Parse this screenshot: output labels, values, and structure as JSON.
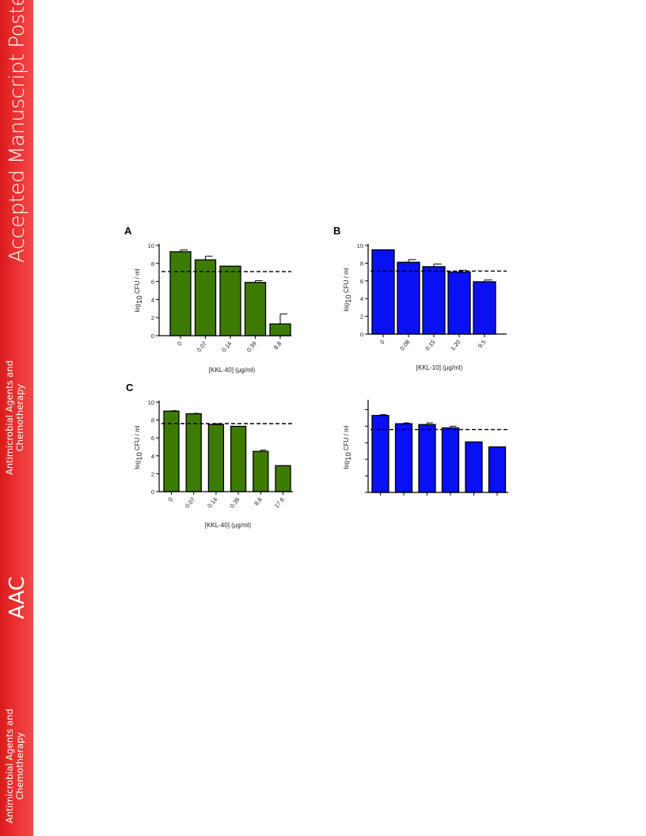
{
  "sidebar": {
    "title": "Accepted Manuscript Posted Online",
    "journal_line1": "Antimicrobial Agents and",
    "journal_line2": "Chemotherapy",
    "abbrev": "AAC",
    "journal_line1_b": "Antimicrobial Agents and",
    "journal_line2_b": "Chemotherapy"
  },
  "colors": {
    "green": "#3d7b00",
    "blue": "#0a10f4",
    "sidebar_red": "#e62828"
  },
  "chart_data": [
    {
      "panel": "A",
      "type": "bar",
      "color": "#3d7b00",
      "categories": [
        "0",
        "0.07",
        "0.14",
        "0.39",
        "8.8"
      ],
      "values": [
        9.3,
        8.4,
        7.7,
        5.9,
        1.3
      ],
      "errors": [
        0.2,
        0.4,
        0.0,
        0.2,
        1.1
      ],
      "ylim": [
        0,
        10
      ],
      "yticks": [
        "0",
        "2",
        "4",
        "6",
        "8",
        "10"
      ],
      "ylabel_pre": "log",
      "ylabel_sub": "10",
      "ylabel_post": " CFU / ml",
      "xlabel": "[KKL-40] (μg/ml)",
      "threshold": 7.1,
      "show_axes_text": true
    },
    {
      "panel": "B",
      "type": "bar",
      "color": "#0a10f4",
      "categories": [
        "0",
        "0.08",
        "0.15",
        "1.20",
        "9.5"
      ],
      "values": [
        9.5,
        8.1,
        7.6,
        7.0,
        5.9
      ],
      "errors": [
        0.0,
        0.3,
        0.3,
        0.2,
        0.2
      ],
      "ylim": [
        0,
        10
      ],
      "yticks": [
        "0",
        "2",
        "4",
        "6",
        "8",
        "10"
      ],
      "ylabel_pre": "log",
      "ylabel_sub": "10",
      "ylabel_post": " CFU / ml",
      "xlabel": "[KKL-10] (μg/ml)",
      "threshold": 7.1,
      "show_axes_text": true
    },
    {
      "panel": "C",
      "type": "bar",
      "color": "#3d7b00",
      "categories": [
        "0",
        "0.07",
        "0.14",
        "0.39",
        "8.8",
        "17.6"
      ],
      "values": [
        9.0,
        8.7,
        7.5,
        7.3,
        4.5,
        2.9
      ],
      "errors": [
        0.05,
        0.05,
        0.1,
        0.0,
        0.15,
        0.0
      ],
      "ylim": [
        0,
        10
      ],
      "yticks": [
        "0",
        "2",
        "4",
        "6",
        "8",
        "10"
      ],
      "ylabel_pre": "log",
      "ylabel_sub": "10",
      "ylabel_post": " CFU / ml",
      "xlabel": "[KKL-40] (μg/ml)",
      "threshold": 7.6,
      "show_axes_text": true
    },
    {
      "panel": "",
      "type": "bar",
      "color": "#0a10f4",
      "categories": [
        "",
        "",
        "",
        "",
        "",
        ""
      ],
      "values": [
        9.3,
        8.3,
        8.2,
        7.8,
        6.1,
        5.5
      ],
      "errors": [
        0.1,
        0.1,
        0.2,
        0.2,
        0.0,
        0.0
      ],
      "ylim": [
        0,
        11
      ],
      "yticks": [
        "",
        "",
        "",
        "",
        "",
        ""
      ],
      "ylabel_pre": "log",
      "ylabel_sub": "10",
      "ylabel_post": " CFU / ml",
      "xlabel": "",
      "threshold": 7.6,
      "show_axes_text": false
    }
  ]
}
